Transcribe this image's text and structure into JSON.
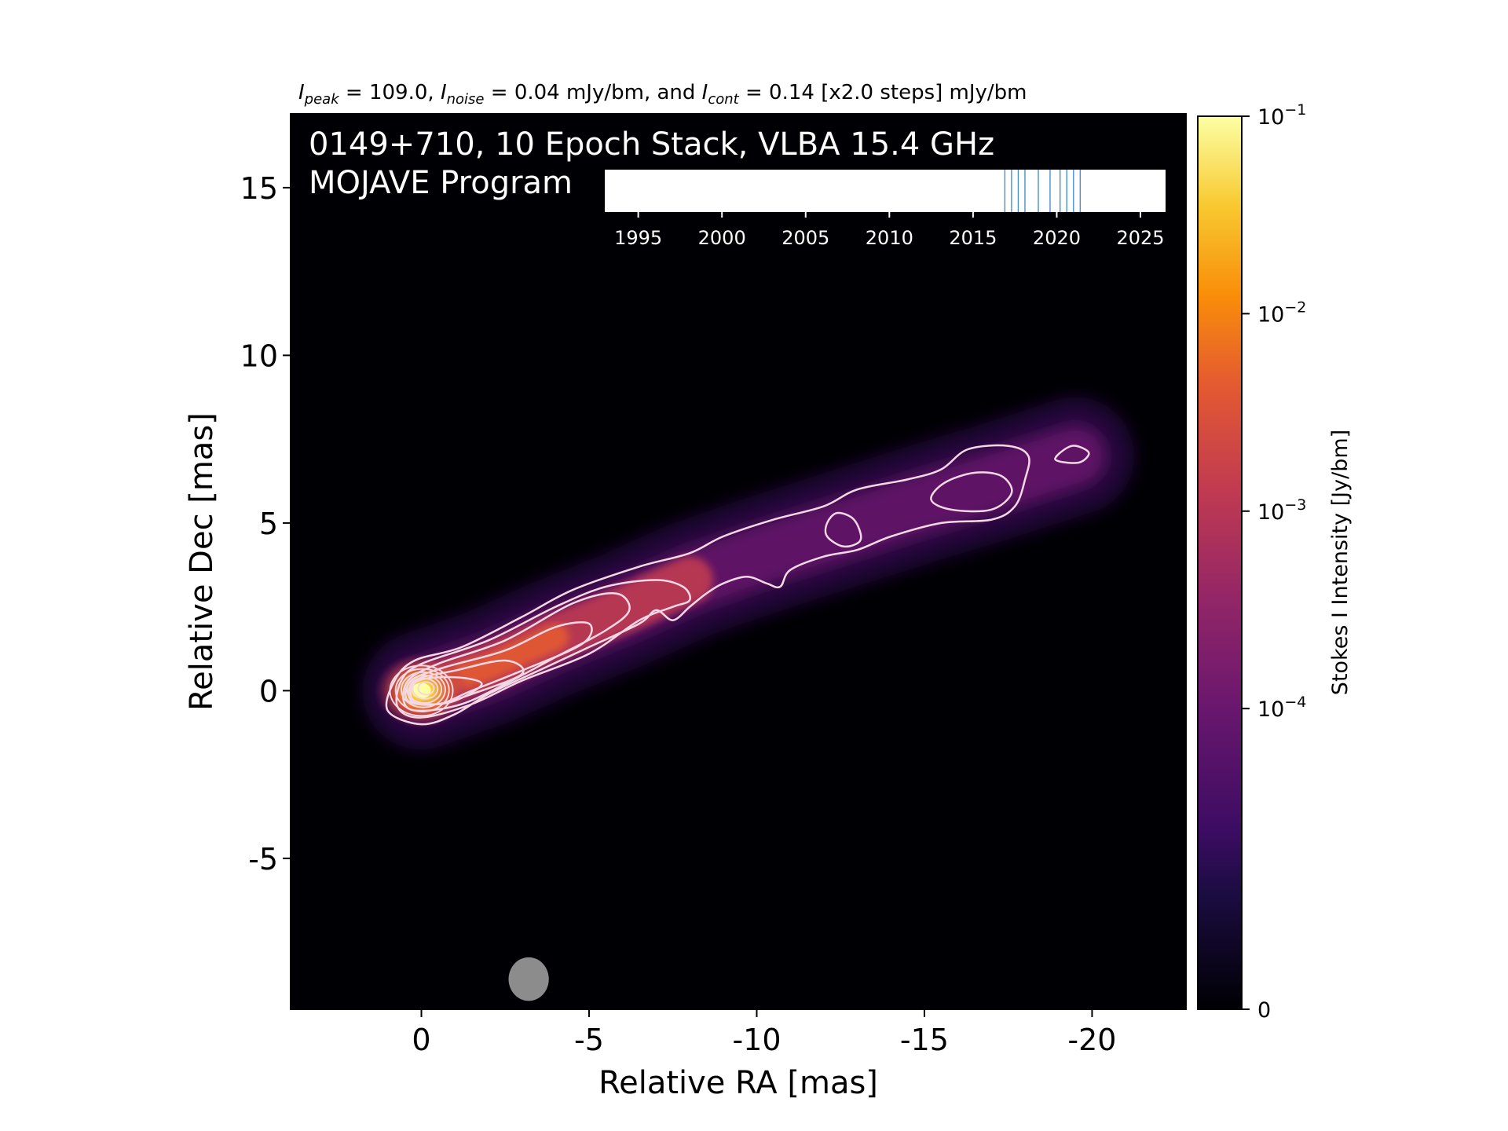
{
  "header": {
    "peak_value": "109.0",
    "noise_value": "0.04 mJy/bm",
    "cont_value": "0.14 [x2.0 steps] mJy/bm",
    "peak_sub": "peak",
    "noise_sub": "noise",
    "cont_sub": "cont",
    "sym": "I",
    "eq": " = ",
    "sep": ", ",
    "and_text": ", and "
  },
  "panel": {
    "title_line1": "0149+710, 10 Epoch Stack, VLBA 15.4 GHz",
    "title_line2": "MOJAVE Program"
  },
  "colors": {
    "background": "#000004",
    "contour": "#f4d8e6",
    "beam": "#8c8c8c",
    "epoch_line": "#4a90c8"
  },
  "chart_data": [
    {
      "type": "heatmap",
      "title": "",
      "xlabel": "Relative RA [mas]",
      "ylabel": "Relative Dec [mas]",
      "xlim": [
        3.9,
        -22.8
      ],
      "ylim": [
        -9.5,
        17.2
      ],
      "x_ticks": [
        0,
        -5,
        -10,
        -15,
        -20
      ],
      "x_tick_labels": [
        "0",
        "-5",
        "-10",
        "-15",
        "-20"
      ],
      "y_ticks": [
        -5,
        0,
        5,
        10,
        15
      ],
      "y_tick_labels": [
        "-5",
        "0",
        "5",
        "10",
        "15"
      ],
      "colormap": "inferno",
      "core": {
        "ra": 0.0,
        "dec": 0.0
      },
      "jet_ridge": [
        {
          "ra": 0.0,
          "dec": 0.0
        },
        {
          "ra": -2.0,
          "dec": 0.7
        },
        {
          "ra": -4.0,
          "dec": 1.6
        },
        {
          "ra": -6.0,
          "dec": 2.4
        },
        {
          "ra": -8.0,
          "dec": 3.3
        },
        {
          "ra": -10.0,
          "dec": 4.0
        },
        {
          "ra": -12.5,
          "dec": 4.8
        },
        {
          "ra": -15.0,
          "dec": 5.6
        },
        {
          "ra": -17.0,
          "dec": 6.2
        },
        {
          "ra": -19.5,
          "dec": 7.0
        }
      ],
      "contours": [
        [
          {
            "ra": 1.0,
            "dec": -0.6
          },
          {
            "ra": 0.8,
            "dec": 0.3
          },
          {
            "ra": 0.2,
            "dec": 0.9
          },
          {
            "ra": -1.2,
            "dec": 1.3
          },
          {
            "ra": -3.0,
            "dec": 2.2
          },
          {
            "ra": -4.5,
            "dec": 3.0
          },
          {
            "ra": -6.5,
            "dec": 3.7
          },
          {
            "ra": -8.0,
            "dec": 4.1
          },
          {
            "ra": -9.0,
            "dec": 4.6
          },
          {
            "ra": -10.5,
            "dec": 5.1
          },
          {
            "ra": -12.0,
            "dec": 5.5
          },
          {
            "ra": -13.0,
            "dec": 6.0
          },
          {
            "ra": -14.5,
            "dec": 6.3
          },
          {
            "ra": -15.5,
            "dec": 6.6
          },
          {
            "ra": -16.3,
            "dec": 7.2
          },
          {
            "ra": -17.5,
            "dec": 7.3
          },
          {
            "ra": -18.1,
            "dec": 7.0
          },
          {
            "ra": -18.0,
            "dec": 6.3
          },
          {
            "ra": -17.7,
            "dec": 5.5
          },
          {
            "ra": -17.0,
            "dec": 5.1
          },
          {
            "ra": -15.5,
            "dec": 5.0
          },
          {
            "ra": -14.0,
            "dec": 4.6
          },
          {
            "ra": -13.0,
            "dec": 4.2
          },
          {
            "ra": -12.0,
            "dec": 4.0
          },
          {
            "ra": -11.0,
            "dec": 3.6
          },
          {
            "ra": -10.7,
            "dec": 3.1
          },
          {
            "ra": -10.3,
            "dec": 3.2
          },
          {
            "ra": -9.7,
            "dec": 3.4
          },
          {
            "ra": -9.0,
            "dec": 3.2
          },
          {
            "ra": -8.5,
            "dec": 2.9
          },
          {
            "ra": -8.0,
            "dec": 2.5
          },
          {
            "ra": -7.5,
            "dec": 2.1
          },
          {
            "ra": -7.0,
            "dec": 2.4
          },
          {
            "ra": -6.5,
            "dec": 2.0
          },
          {
            "ra": -5.0,
            "dec": 1.3
          },
          {
            "ra": -3.5,
            "dec": 0.6
          },
          {
            "ra": -2.0,
            "dec": -0.1
          },
          {
            "ra": -1.0,
            "dec": -0.7
          },
          {
            "ra": 0.0,
            "dec": -1.0
          }
        ],
        [
          {
            "ra": 0.7,
            "dec": -0.5
          },
          {
            "ra": 0.6,
            "dec": 0.3
          },
          {
            "ra": 0.0,
            "dec": 0.8
          },
          {
            "ra": -2.0,
            "dec": 1.5
          },
          {
            "ra": -4.0,
            "dec": 2.5
          },
          {
            "ra": -5.5,
            "dec": 3.1
          },
          {
            "ra": -7.0,
            "dec": 3.3
          },
          {
            "ra": -7.8,
            "dec": 3.1
          },
          {
            "ra": -8.0,
            "dec": 2.7
          },
          {
            "ra": -7.5,
            "dec": 2.5
          },
          {
            "ra": -6.5,
            "dec": 2.1
          },
          {
            "ra": -5.0,
            "dec": 1.1
          },
          {
            "ra": -3.0,
            "dec": 0.3
          },
          {
            "ra": -1.5,
            "dec": -0.4
          },
          {
            "ra": 0.0,
            "dec": -0.8
          }
        ],
        [
          {
            "ra": 0.5,
            "dec": -0.4
          },
          {
            "ra": 0.4,
            "dec": 0.3
          },
          {
            "ra": -0.5,
            "dec": 0.8
          },
          {
            "ra": -2.5,
            "dec": 1.5
          },
          {
            "ra": -4.5,
            "dec": 2.6
          },
          {
            "ra": -5.8,
            "dec": 2.9
          },
          {
            "ra": -6.2,
            "dec": 2.4
          },
          {
            "ra": -5.5,
            "dec": 1.8
          },
          {
            "ra": -4.0,
            "dec": 1.0
          },
          {
            "ra": -2.5,
            "dec": 0.2
          },
          {
            "ra": -1.2,
            "dec": -0.4
          },
          {
            "ra": 0.0,
            "dec": -0.6
          }
        ],
        [
          {
            "ra": 0.4,
            "dec": -0.3
          },
          {
            "ra": 0.3,
            "dec": 0.3
          },
          {
            "ra": -0.7,
            "dec": 0.7
          },
          {
            "ra": -2.5,
            "dec": 1.2
          },
          {
            "ra": -4.0,
            "dec": 1.9
          },
          {
            "ra": -5.0,
            "dec": 2.0
          },
          {
            "ra": -4.8,
            "dec": 1.4
          },
          {
            "ra": -3.0,
            "dec": 0.6
          },
          {
            "ra": -1.5,
            "dec": 0.0
          },
          {
            "ra": -0.5,
            "dec": -0.4
          }
        ],
        [
          {
            "ra": 0.3,
            "dec": -0.3
          },
          {
            "ra": 0.2,
            "dec": 0.3
          },
          {
            "ra": -1.0,
            "dec": 0.6
          },
          {
            "ra": -2.5,
            "dec": 0.9
          },
          {
            "ra": -3.0,
            "dec": 0.5
          },
          {
            "ra": -1.5,
            "dec": -0.1
          },
          {
            "ra": -0.5,
            "dec": -0.4
          }
        ],
        [
          {
            "ra": 0.3,
            "dec": -0.2
          },
          {
            "ra": 0.1,
            "dec": 0.3
          },
          {
            "ra": -1.0,
            "dec": 0.4
          },
          {
            "ra": -1.8,
            "dec": 0.2
          },
          {
            "ra": -1.0,
            "dec": -0.3
          },
          {
            "ra": -0.2,
            "dec": -0.4
          }
        ],
        [
          {
            "ra": -15.2,
            "dec": 5.7
          },
          {
            "ra": -15.6,
            "dec": 6.2
          },
          {
            "ra": -16.5,
            "dec": 6.5
          },
          {
            "ra": -17.3,
            "dec": 6.4
          },
          {
            "ra": -17.6,
            "dec": 5.9
          },
          {
            "ra": -17.0,
            "dec": 5.4
          },
          {
            "ra": -15.8,
            "dec": 5.4
          }
        ],
        [
          {
            "ra": -12.1,
            "dec": 5.0
          },
          {
            "ra": -12.4,
            "dec": 5.3
          },
          {
            "ra": -12.9,
            "dec": 5.1
          },
          {
            "ra": -13.1,
            "dec": 4.5
          },
          {
            "ra": -12.6,
            "dec": 4.3
          },
          {
            "ra": -12.1,
            "dec": 4.6
          }
        ],
        [
          {
            "ra": -18.9,
            "dec": 6.9
          },
          {
            "ra": -19.4,
            "dec": 7.3
          },
          {
            "ra": -19.9,
            "dec": 7.1
          },
          {
            "ra": -19.6,
            "dec": 6.8
          }
        ]
      ],
      "beam": {
        "ra": -3.2,
        "dec": -8.6,
        "major_mas": 0.65,
        "minor_mas": 0.6
      }
    },
    {
      "type": "colorbar",
      "label": "Stokes I Intensity [Jy/bm]",
      "scale": "symlog",
      "range": [
        0,
        0.1
      ],
      "linthresh": 3e-05,
      "ticks": [
        0,
        0.0001,
        0.001,
        0.01,
        0.1
      ],
      "tick_labels": [
        {
          "base": "0",
          "exp": ""
        },
        {
          "base": "10",
          "exp": "−4"
        },
        {
          "base": "10",
          "exp": "−3"
        },
        {
          "base": "10",
          "exp": "−2"
        },
        {
          "base": "10",
          "exp": "−1"
        }
      ]
    },
    {
      "type": "timeline",
      "xlim": [
        1993,
        2026.5
      ],
      "ticks": [
        1995,
        2000,
        2005,
        2010,
        2015,
        2020,
        2025
      ],
      "tick_labels": [
        "1995",
        "2000",
        "2005",
        "2010",
        "2015",
        "2020",
        "2025"
      ],
      "epochs": [
        2016.9,
        2017.3,
        2017.7,
        2018.1,
        2018.9,
        2019.6,
        2020.2,
        2020.6,
        2021.0,
        2021.4
      ]
    }
  ]
}
